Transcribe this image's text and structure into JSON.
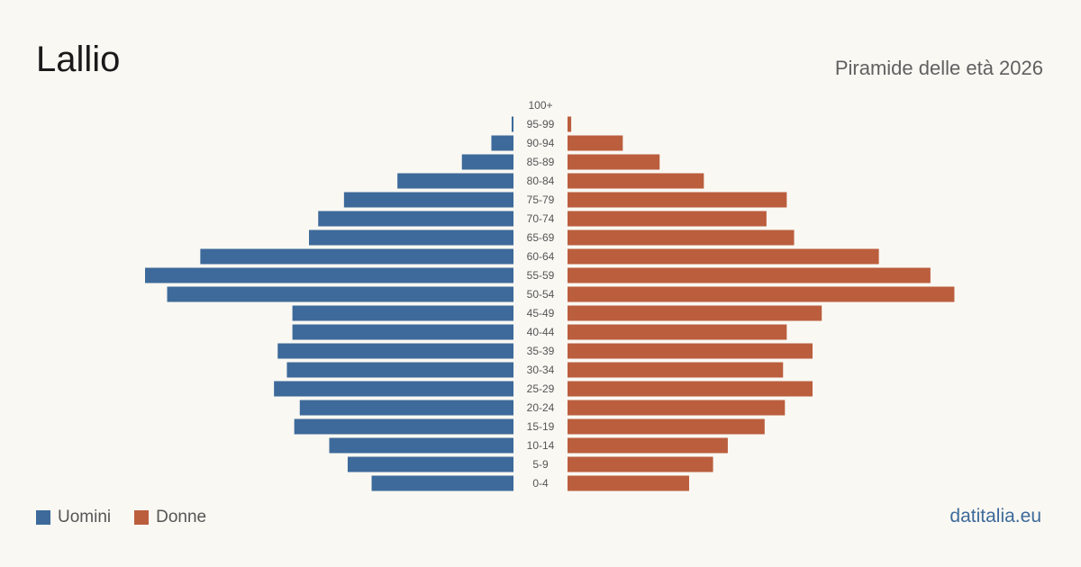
{
  "header": {
    "title": "Lallio",
    "subtitle": "Piramide delle età 2026"
  },
  "legend": {
    "men_label": "Uomini",
    "women_label": "Donne"
  },
  "footer": {
    "brand": "datitalia.eu"
  },
  "colors": {
    "men": "#3d6a9a",
    "women": "#bb5e3d"
  },
  "chart_data": {
    "type": "bar",
    "orientation": "horizontal-pyramid",
    "categories": [
      "100+",
      "95-99",
      "90-94",
      "85-89",
      "80-84",
      "75-79",
      "70-74",
      "65-69",
      "60-64",
      "55-59",
      "50-54",
      "45-49",
      "40-44",
      "35-39",
      "30-34",
      "25-29",
      "20-24",
      "15-19",
      "10-14",
      "5-9",
      "0-4"
    ],
    "series": [
      {
        "name": "Uomini",
        "values": [
          0,
          1,
          12,
          28,
          63,
          92,
          106,
          111,
          170,
          200,
          188,
          120,
          120,
          128,
          123,
          130,
          116,
          119,
          100,
          90,
          77
        ]
      },
      {
        "name": "Donne",
        "values": [
          0,
          2,
          30,
          50,
          74,
          119,
          108,
          123,
          169,
          197,
          210,
          138,
          119,
          133,
          117,
          133,
          118,
          107,
          87,
          79,
          66
        ]
      }
    ],
    "grid": false,
    "legend_position": "bottom-left"
  }
}
